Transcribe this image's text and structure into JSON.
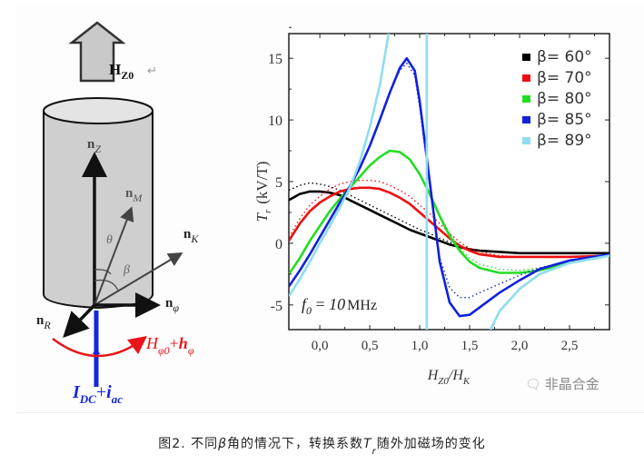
{
  "schematic": {
    "field_label": "H",
    "field_sub": "Z0",
    "vectors": [
      {
        "name": "n",
        "sub": "Z"
      },
      {
        "name": "n",
        "sub": "M"
      },
      {
        "name": "n",
        "sub": "K"
      },
      {
        "name": "n",
        "sub": "φ"
      },
      {
        "name": "n",
        "sub": "R"
      }
    ],
    "angle_theta": "θ",
    "angle_beta": "β",
    "circ_field_main": "H",
    "circ_field_main_sub": "φ0",
    "circ_field_plus": "+",
    "circ_field_ac": "h",
    "circ_field_ac_sub": "φ",
    "current_dc": "I",
    "current_dc_sub": "DC",
    "current_plus": "+",
    "current_ac": "i",
    "current_ac_sub": "ac",
    "return_mark": "↵",
    "colors": {
      "field_circ": "#e8141a",
      "current": "#1426e0",
      "body": "#cfcfcf"
    }
  },
  "chart_data": {
    "type": "line",
    "title": "",
    "xlabel": "H_Z0/H_K",
    "xlabel_main": "H",
    "xlabel_sub1": "Z0",
    "xlabel_mid": "/H",
    "xlabel_sub2": "K",
    "ylabel": "T_r (kV/T)",
    "ylabel_main": "T",
    "ylabel_sub": "r",
    "ylabel_unit": "(kV/T)",
    "xlim": [
      -0.31,
      2.9
    ],
    "ylim": [
      -7,
      17
    ],
    "xticks": [
      0.0,
      0.5,
      1.0,
      1.5,
      2.0,
      2.5
    ],
    "xtick_labels": [
      "0,0",
      "0,5",
      "1,0",
      "1,5",
      "2,0",
      "2,5"
    ],
    "yticks": [
      -5,
      0,
      5,
      10,
      15
    ],
    "ytick_labels": [
      "-5",
      "0",
      "5",
      "10",
      "15"
    ],
    "legend_position": "top-right",
    "annotation": {
      "main": "f",
      "sub": "0",
      "eq": " = ",
      "value": "10",
      "unit": "MHz"
    },
    "series": [
      {
        "name": "β= 60°",
        "color": "#000000",
        "x": [
          -0.31,
          -0.2,
          -0.1,
          0.0,
          0.1,
          0.2,
          0.3,
          0.4,
          0.5,
          0.6,
          0.7,
          0.8,
          0.9,
          1.0,
          1.1,
          1.2,
          1.3,
          1.4,
          1.5,
          1.6,
          1.8,
          2.0,
          2.2,
          2.5,
          2.9
        ],
        "y": [
          3.5,
          4.0,
          4.2,
          4.2,
          4.1,
          3.9,
          3.5,
          3.1,
          2.7,
          2.3,
          1.9,
          1.5,
          1.1,
          0.8,
          0.5,
          0.2,
          -0.1,
          -0.3,
          -0.5,
          -0.6,
          -0.7,
          -0.8,
          -0.8,
          -0.8,
          -0.8
        ],
        "dotted_y": [
          4.3,
          4.7,
          4.9,
          4.8,
          4.6,
          4.3,
          3.9,
          3.5,
          3.1,
          2.7,
          2.3,
          1.9,
          1.5,
          1.1,
          0.8,
          0.4,
          0.1,
          -0.2,
          -0.4,
          -0.6,
          -0.7,
          -0.8,
          -0.8,
          -0.8,
          -0.8
        ]
      },
      {
        "name": "β= 70°",
        "color": "#ee1010",
        "x": [
          -0.31,
          -0.2,
          -0.1,
          0.0,
          0.1,
          0.2,
          0.3,
          0.4,
          0.5,
          0.6,
          0.7,
          0.8,
          0.9,
          1.0,
          1.1,
          1.2,
          1.3,
          1.4,
          1.5,
          1.6,
          1.8,
          2.0,
          2.2,
          2.5,
          2.9
        ],
        "y": [
          0.2,
          1.6,
          2.6,
          3.3,
          3.8,
          4.2,
          4.4,
          4.5,
          4.5,
          4.4,
          4.1,
          3.7,
          3.2,
          2.5,
          1.8,
          1.1,
          0.4,
          -0.2,
          -0.6,
          -0.9,
          -1.1,
          -1.1,
          -1.1,
          -1.1,
          -1.0
        ],
        "dotted_y": [
          0.5,
          2.0,
          3.1,
          3.8,
          4.4,
          4.8,
          5.0,
          5.1,
          5.1,
          5.0,
          4.7,
          4.3,
          3.8,
          3.1,
          2.4,
          1.6,
          0.8,
          0.1,
          -0.4,
          -0.7,
          -1.0,
          -1.1,
          -1.1,
          -1.1,
          -1.0
        ]
      },
      {
        "name": "β= 80°",
        "color": "#22dd22",
        "x": [
          -0.31,
          -0.2,
          -0.1,
          0.0,
          0.1,
          0.2,
          0.3,
          0.4,
          0.5,
          0.6,
          0.7,
          0.8,
          0.9,
          1.0,
          1.1,
          1.2,
          1.3,
          1.4,
          1.5,
          1.6,
          1.8,
          2.0,
          2.2,
          2.5,
          2.9
        ],
        "y": [
          -2.5,
          -1.2,
          0.2,
          1.4,
          2.6,
          3.6,
          4.5,
          5.4,
          6.3,
          7.0,
          7.5,
          7.4,
          6.8,
          5.6,
          4.0,
          2.2,
          0.6,
          -0.6,
          -1.5,
          -2.0,
          -2.4,
          -2.4,
          -2.2,
          -1.6,
          -1.0
        ],
        "dotted_y": [
          -2.5,
          -1.2,
          0.2,
          1.4,
          2.6,
          3.6,
          4.5,
          5.4,
          6.3,
          7.0,
          7.5,
          7.4,
          6.8,
          5.6,
          4.0,
          2.3,
          0.8,
          -0.4,
          -1.2,
          -1.7,
          -2.1,
          -2.2,
          -2.0,
          -1.5,
          -1.0
        ]
      },
      {
        "name": "β= 85°",
        "color": "#1020dd",
        "x": [
          -0.31,
          -0.2,
          -0.1,
          0.0,
          0.1,
          0.2,
          0.3,
          0.4,
          0.5,
          0.6,
          0.7,
          0.8,
          0.87,
          0.95,
          1.0,
          1.1,
          1.2,
          1.3,
          1.4,
          1.5,
          1.6,
          1.8,
          2.0,
          2.2,
          2.5,
          2.9
        ],
        "y": [
          -3.5,
          -2.2,
          -0.9,
          0.5,
          1.9,
          3.3,
          4.6,
          6.1,
          7.9,
          10.0,
          12.2,
          14.2,
          15.0,
          14.0,
          11.5,
          5.0,
          -1.5,
          -4.8,
          -5.9,
          -5.8,
          -5.2,
          -4.0,
          -3.0,
          -2.1,
          -1.4,
          -0.9
        ],
        "dotted_y": [
          -3.5,
          -2.2,
          -0.9,
          0.5,
          1.9,
          3.3,
          4.6,
          6.1,
          7.9,
          10.0,
          12.2,
          14.0,
          14.6,
          13.6,
          11.0,
          4.6,
          -1.2,
          -3.6,
          -4.4,
          -4.4,
          -4.0,
          -3.3,
          -2.6,
          -2.0,
          -1.4,
          -0.9
        ]
      },
      {
        "name": "β= 89°",
        "color": "#8fdcf0",
        "x": [
          -0.31,
          -0.2,
          -0.1,
          0.0,
          0.1,
          0.2,
          0.3,
          0.4,
          0.5,
          0.6,
          0.7,
          1.07,
          1.07,
          1.68,
          1.8,
          2.0,
          2.2,
          2.5,
          2.9
        ],
        "y": [
          -4.3,
          -2.9,
          -1.5,
          0.0,
          1.4,
          2.9,
          4.5,
          6.6,
          9.4,
          12.8,
          17.5,
          17.5,
          -7.5,
          -7.5,
          -5.5,
          -3.7,
          -2.5,
          -1.6,
          -1.0
        ],
        "dotted_y": []
      }
    ]
  },
  "watermark": {
    "icon": "wechat-icon",
    "text": "非晶合金"
  },
  "caption": {
    "prefix": "图2. 不同",
    "beta": "β",
    "middle": "角的情况下，转换系数",
    "tr_main": "T",
    "tr_sub": "r",
    "suffix": "随外加磁场的变化"
  }
}
